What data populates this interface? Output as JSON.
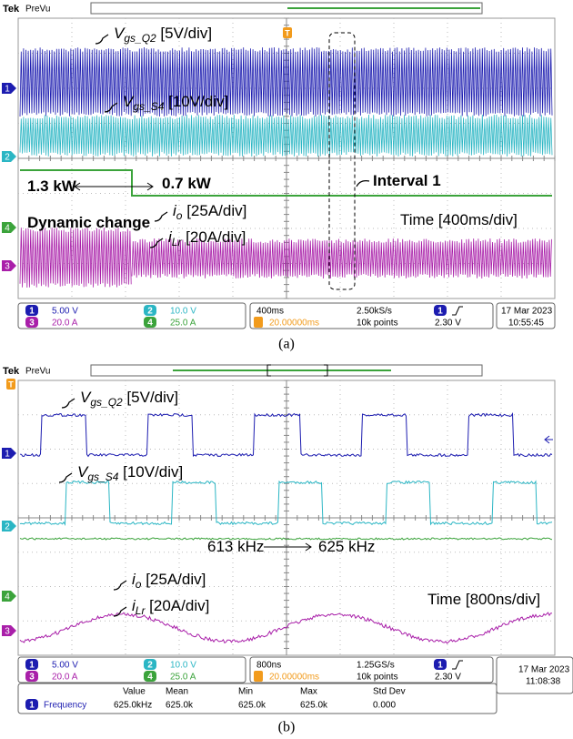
{
  "panel_a": {
    "header": {
      "brand": "Tek",
      "mode": "PreVu",
      "trigger_marker": "T"
    },
    "channel_markers": [
      "1",
      "2",
      "4",
      "3"
    ],
    "annotations": [
      {
        "text": "V",
        "sub": "gs_Q2",
        "suffix": " [5V/div]"
      },
      {
        "text": "V",
        "sub": "gs_S4",
        "suffix": " [10V/div]"
      },
      {
        "text": "1.3 kW"
      },
      {
        "text": "0.7 kW"
      },
      {
        "text": "Interval 1"
      },
      {
        "text": "i",
        "sub": "o",
        "suffix": " [25A/div]"
      },
      {
        "text": "Dynamic change"
      },
      {
        "text": "Time [400ms/div]"
      },
      {
        "text": "i",
        "sub": "Lr",
        "suffix": " [20A/div]"
      }
    ],
    "status": {
      "channels": [
        {
          "num": "1",
          "scale": "5.00 V"
        },
        {
          "num": "2",
          "scale": "10.0 V"
        },
        {
          "num": "3",
          "scale": "20.0 A"
        },
        {
          "num": "4",
          "scale": "25.0 A"
        }
      ],
      "timebase": "400ms",
      "sample_rate": "2.50kS/s",
      "trigger_source": "1",
      "trigger_position": "20.00000ms",
      "record_length": "10k points",
      "trigger_level": "2.30 V",
      "date": "17 Mar 2023",
      "time": "10:55:45"
    },
    "caption": "(a)"
  },
  "panel_b": {
    "header": {
      "brand": "Tek",
      "mode": "PreVu",
      "trigger_marker": "T"
    },
    "channel_markers": [
      "1",
      "2",
      "4",
      "3"
    ],
    "annotations": [
      {
        "text": "V",
        "sub": "gs_Q2",
        "suffix": " [5V/div]"
      },
      {
        "text": "V",
        "sub": "gs_S4",
        "suffix": " [10V/div]"
      },
      {
        "text": "613 kHz"
      },
      {
        "text": "625 kHz"
      },
      {
        "text": "i",
        "sub": "o",
        "suffix": " [25A/div]"
      },
      {
        "text": "Time [800ns/div]"
      },
      {
        "text": "i",
        "sub": "Lr",
        "suffix": " [20A/div]"
      }
    ],
    "status": {
      "channels": [
        {
          "num": "1",
          "scale": "5.00 V"
        },
        {
          "num": "2",
          "scale": "10.0 V"
        },
        {
          "num": "3",
          "scale": "20.0 A"
        },
        {
          "num": "4",
          "scale": "25.0 A"
        }
      ],
      "timebase": "800ns",
      "sample_rate": "1.25GS/s",
      "trigger_source": "1",
      "trigger_position": "20.00000ms",
      "record_length": "10k points",
      "trigger_level": "2.30 V",
      "date": "17 Mar 2023",
      "time": "11:08:38"
    },
    "measurements": {
      "headers": [
        "Value",
        "Mean",
        "Min",
        "Max",
        "Std Dev"
      ],
      "rows": [
        {
          "channel": "1",
          "name": "Frequency",
          "cells": [
            "625.0kHz",
            "625.0k",
            "625.0k",
            "625.0k",
            "0.000"
          ]
        }
      ]
    },
    "caption": "(b)"
  }
}
